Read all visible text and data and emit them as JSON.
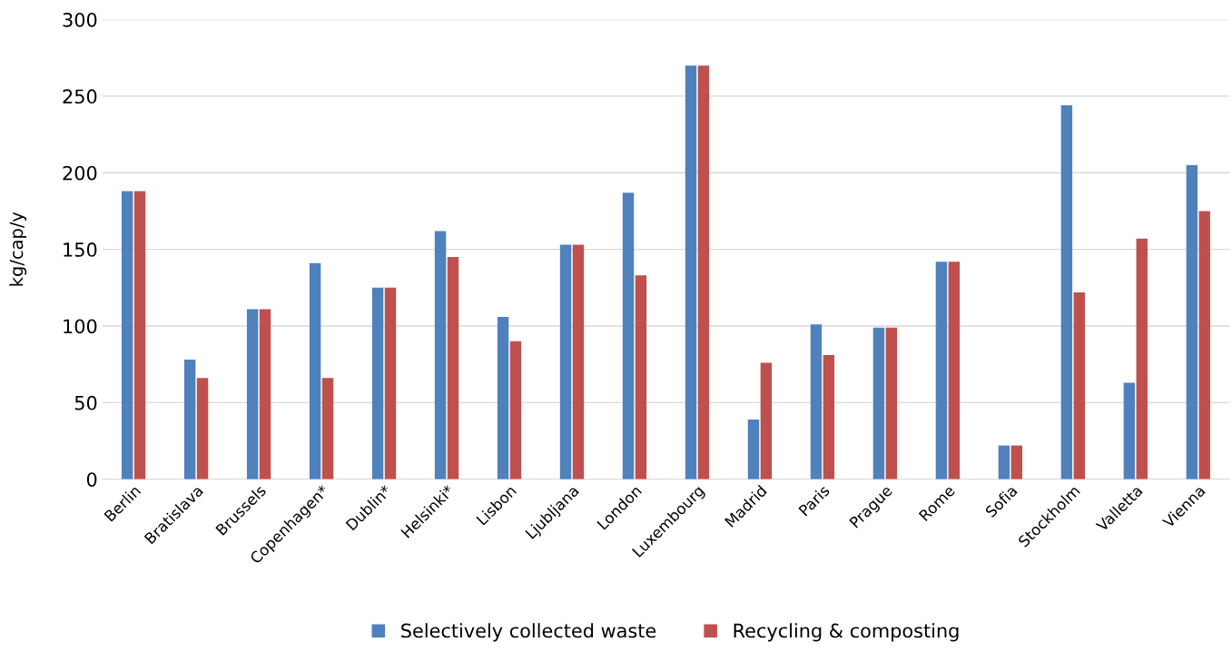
{
  "chart_data": {
    "type": "bar",
    "ylabel": "kg/cap/y",
    "categories": [
      "Berlin",
      "Bratislava",
      "Brussels",
      "Copenhagen*",
      "Dublin*",
      "Helsinki*",
      "Lisbon",
      "Ljubljana",
      "London",
      "Luxembourg",
      "Madrid",
      "Paris",
      "Prague",
      "Rome",
      "Sofia",
      "Stockholm",
      "Valletta",
      "Vienna"
    ],
    "series": [
      {
        "name": "Selectively collected waste",
        "color": "#4f81bd",
        "values": [
          188,
          78,
          111,
          141,
          125,
          162,
          106,
          153,
          187,
          270,
          39,
          101,
          99,
          142,
          22,
          244,
          63,
          205
        ]
      },
      {
        "name": "Recycling & composting",
        "color": "#c0504d",
        "values": [
          188,
          66,
          111,
          66,
          125,
          145,
          90,
          153,
          133,
          270,
          76,
          81,
          99,
          142,
          22,
          122,
          157,
          175
        ]
      }
    ],
    "ylim": [
      0,
      300
    ],
    "yticks": [
      0,
      50,
      100,
      150,
      200,
      250,
      300
    ],
    "grid": "y",
    "legend": "bottom"
  }
}
